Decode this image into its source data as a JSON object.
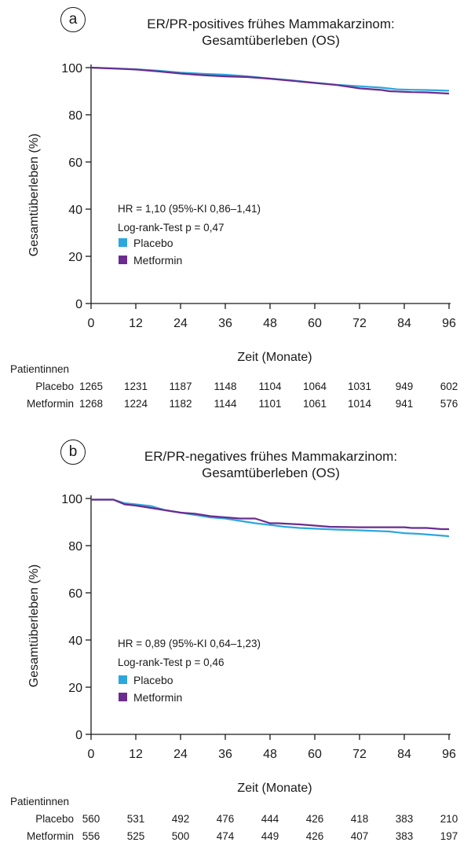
{
  "colors": {
    "placebo": "#2ca7de",
    "metformin": "#6a2c8e",
    "axis": "#1a1a1a"
  },
  "chart_data": [
    {
      "panel_label": "a",
      "type": "line",
      "title_line1": "ER/PR-positives frühes Mammakarzinom:",
      "title_line2": "Gesamtüberleben (OS)",
      "xlabel": "Zeit (Monate)",
      "ylabel": "Gesamtüberleben (%)",
      "xlim": [
        0,
        96
      ],
      "ylim": [
        0,
        100
      ],
      "xticks": [
        0,
        12,
        24,
        36,
        48,
        60,
        72,
        84,
        96
      ],
      "yticks": [
        0,
        20,
        40,
        60,
        80,
        100
      ],
      "annotation": {
        "hr": "HR = 1,10 (95%-KI 0,86–1,41)",
        "logrank": "Log-rank-Test p = 0,47"
      },
      "series": [
        {
          "name": "Placebo",
          "color": "#2ca7de",
          "x": [
            0,
            6,
            12,
            18,
            24,
            30,
            36,
            42,
            48,
            54,
            60,
            66,
            72,
            78,
            82,
            86,
            90,
            96
          ],
          "y": [
            100,
            99.7,
            99.3,
            98.7,
            97.9,
            97.4,
            97.0,
            96.3,
            95.4,
            94.6,
            93.6,
            92.7,
            92.1,
            91.5,
            90.8,
            90.6,
            90.5,
            90.2
          ]
        },
        {
          "name": "Metformin",
          "color": "#6a2c8e",
          "x": [
            0,
            6,
            12,
            18,
            24,
            30,
            36,
            42,
            48,
            54,
            60,
            66,
            72,
            78,
            80,
            86,
            90,
            96
          ],
          "y": [
            100,
            99.6,
            99.2,
            98.4,
            97.5,
            96.8,
            96.3,
            96.0,
            95.3,
            94.4,
            93.5,
            92.6,
            91.2,
            90.5,
            90.0,
            89.6,
            89.5,
            89.0
          ]
        }
      ],
      "risk_table": {
        "header": "Patientinnen",
        "rows": [
          {
            "label": "Placebo",
            "values": [
              1265,
              1231,
              1187,
              1148,
              1104,
              1064,
              1031,
              949,
              602
            ]
          },
          {
            "label": "Metformin",
            "values": [
              1268,
              1224,
              1182,
              1144,
              1101,
              1061,
              1014,
              941,
              576
            ]
          }
        ]
      }
    },
    {
      "panel_label": "b",
      "type": "line",
      "title_line1": "ER/PR-negatives  frühes Mammakarzinom:",
      "title_line2": "Gesamtüberleben (OS)",
      "xlabel": "Zeit (Monate)",
      "ylabel": "Gesamtüberleben (%)",
      "xlim": [
        0,
        96
      ],
      "ylim": [
        0,
        100
      ],
      "xticks": [
        0,
        12,
        24,
        36,
        48,
        60,
        72,
        84,
        96
      ],
      "yticks": [
        0,
        20,
        40,
        60,
        80,
        100
      ],
      "annotation": {
        "hr": "HR = 0,89 (95%-KI 0,64–1,23)",
        "logrank": "Log-rank-Test p = 0,46"
      },
      "series": [
        {
          "name": "Placebo",
          "color": "#2ca7de",
          "x": [
            0,
            6,
            9,
            12,
            16,
            20,
            24,
            28,
            32,
            36,
            40,
            44,
            48,
            52,
            56,
            60,
            66,
            72,
            80,
            84,
            88,
            92,
            96
          ],
          "y": [
            99.5,
            99.5,
            98.0,
            97.5,
            96.8,
            95.0,
            94.0,
            93.0,
            92.0,
            91.5,
            90.5,
            89.5,
            88.8,
            88.0,
            87.5,
            87.2,
            86.8,
            86.5,
            86.0,
            85.3,
            85.0,
            84.5,
            84.0
          ]
        },
        {
          "name": "Metformin",
          "color": "#6a2c8e",
          "x": [
            0,
            6,
            9,
            12,
            16,
            20,
            24,
            28,
            32,
            36,
            40,
            44,
            47,
            48,
            50,
            56,
            60,
            64,
            72,
            84,
            86,
            90,
            94,
            96
          ],
          "y": [
            99.5,
            99.5,
            97.5,
            97.0,
            96.0,
            95.0,
            94.0,
            93.5,
            92.5,
            92.0,
            91.5,
            91.5,
            90.0,
            89.5,
            89.5,
            89.0,
            88.5,
            88.0,
            87.8,
            87.8,
            87.5,
            87.5,
            87.0,
            87.0
          ]
        }
      ],
      "risk_table": {
        "header": "Patientinnen",
        "rows": [
          {
            "label": "Placebo",
            "values": [
              560,
              531,
              492,
              476,
              444,
              426,
              418,
              383,
              210
            ]
          },
          {
            "label": "Metformin",
            "values": [
              556,
              525,
              500,
              474,
              449,
              426,
              407,
              383,
              197
            ]
          }
        ]
      }
    }
  ]
}
